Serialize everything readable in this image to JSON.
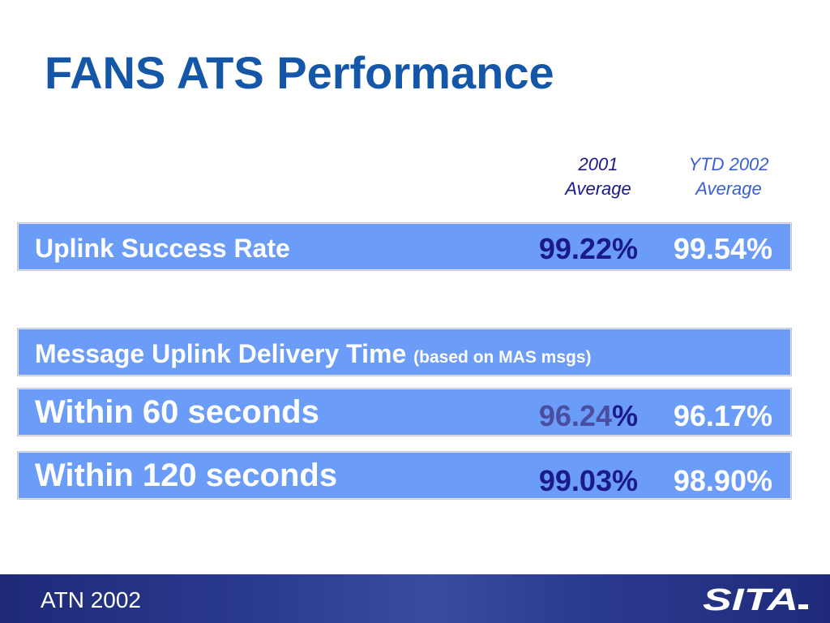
{
  "title": "FANS ATS Performance",
  "columns": {
    "col1": {
      "line1": "2001",
      "line2": "Average"
    },
    "col2": {
      "line1": "YTD 2002",
      "line2": "Average"
    }
  },
  "rows": {
    "uplink_success": {
      "label": "Uplink Success Rate",
      "value_2001": "99.22%",
      "value_2002": "99.54%"
    },
    "delivery_header": {
      "label": "Message Uplink Delivery Time",
      "sublabel": "(based on MAS msgs)"
    },
    "within_60": {
      "label": "Within 60 seconds",
      "value_2001_number": "96.24",
      "value_2001_percent": "%",
      "value_2002": "96.17%"
    },
    "within_120": {
      "label": "Within 120 seconds",
      "value_2001": "99.03%",
      "value_2002": "98.90%"
    }
  },
  "footer": {
    "text": "ATN 2002",
    "logo_text": "SITA"
  },
  "colors": {
    "title": "#1456a8",
    "bar_fill": "#6b9cf7",
    "value_2001": "#1a1a8c",
    "value_2002": "#ffffff",
    "footer_bg": "#2a3a8e"
  }
}
